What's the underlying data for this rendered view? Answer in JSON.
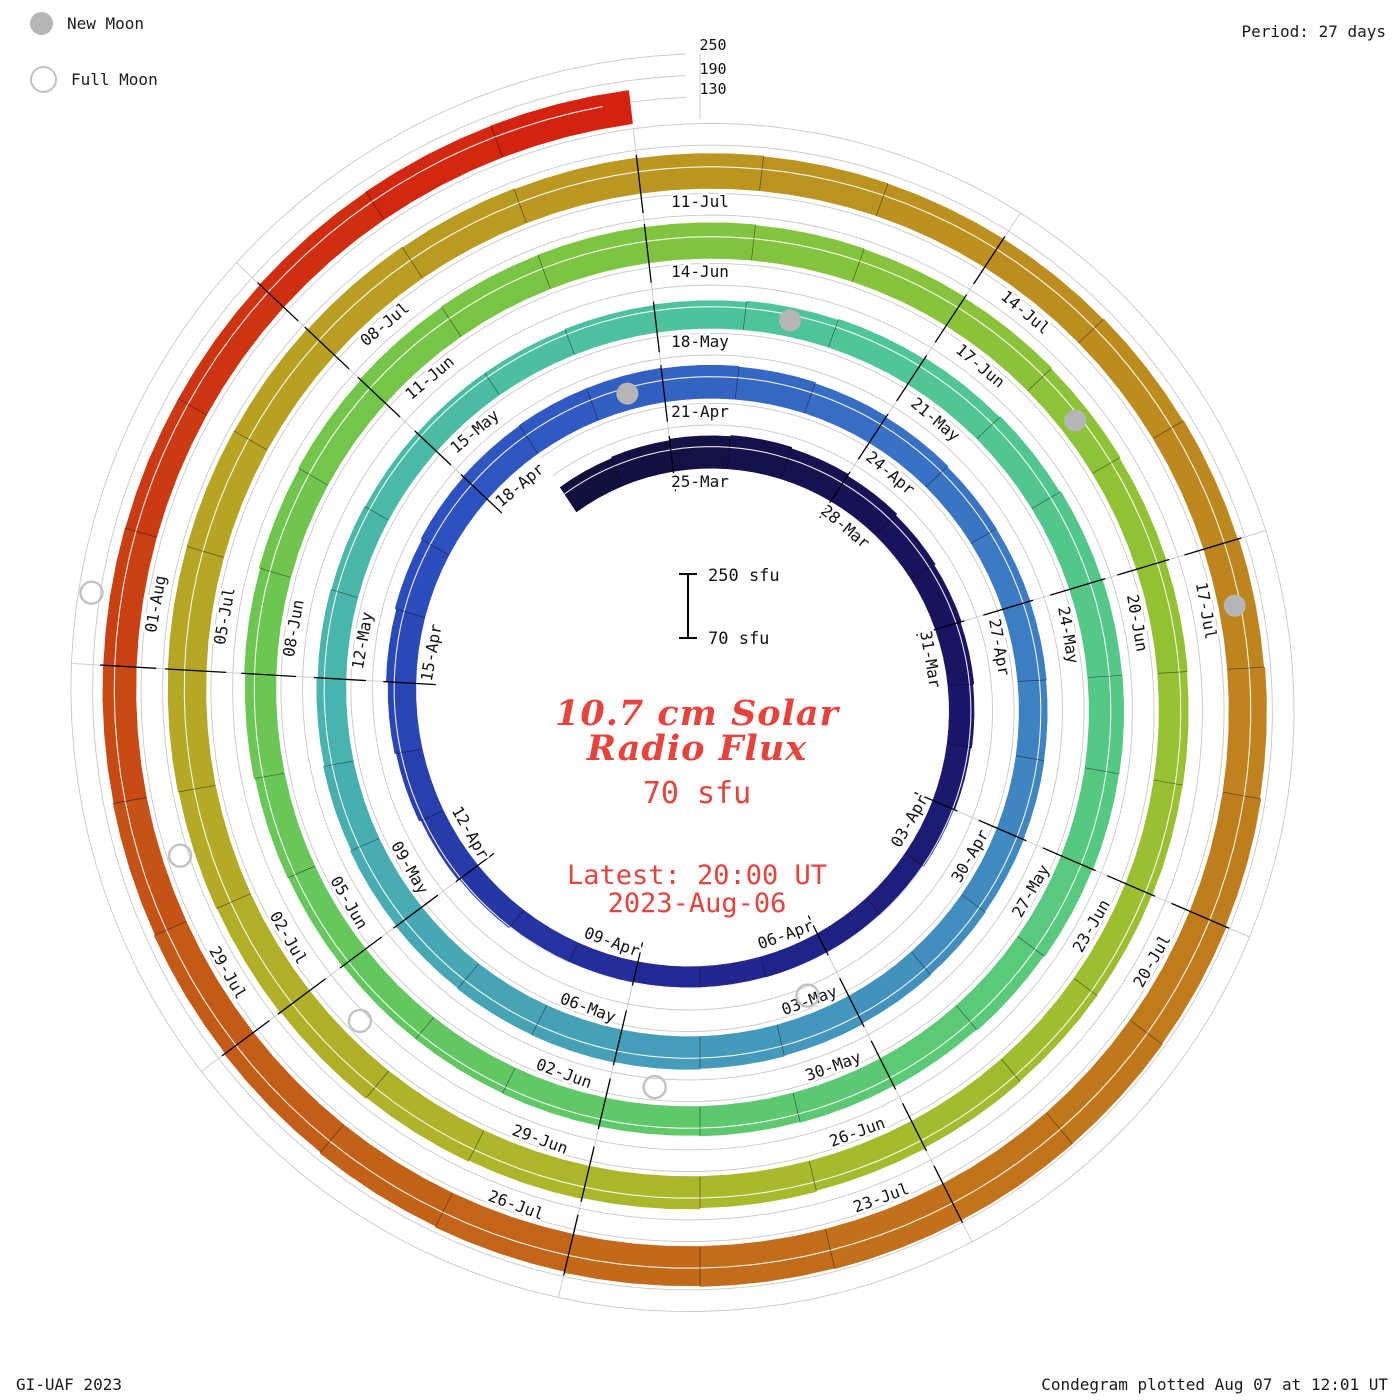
{
  "meta": {
    "credit": "GI-UAF 2023",
    "plotted": "Condegram plotted Aug 07 at 12:01 UT",
    "period_label": "Period: 27 days"
  },
  "legend": {
    "new_moon": "New Moon",
    "full_moon": "Full Moon"
  },
  "center": {
    "title_line1": "10.7 cm Solar",
    "title_line2": "Radio Flux",
    "baseline_label": "70 sfu",
    "latest_line1": "Latest: 20:00 UT",
    "latest_line2": "2023-Aug-06",
    "scale_top_label": "250 sfu",
    "scale_bottom_label": "70 sfu"
  },
  "scale_axis_labels": [
    "250",
    "190",
    "130"
  ],
  "chart_data": {
    "type": "bar",
    "layout": "condegram-spiral",
    "title": "10.7 cm Solar Radio Flux",
    "period_days": 27,
    "start_date": "2023-03-23",
    "end_date": "2023-08-06",
    "flux_unit": "sfu",
    "flux_min": 70,
    "flux_max": 250,
    "gridlines_sfu": [
      130,
      190,
      250
    ],
    "label_step_days": 3,
    "date_labels": [
      "25-Mar",
      "28-Mar",
      "31-Mar",
      "03-Apr",
      "06-Apr",
      "09-Apr",
      "12-Apr",
      "15-Apr",
      "18-Apr",
      "21-Apr",
      "24-Apr",
      "27-Apr",
      "30-Apr",
      "03-May",
      "06-May",
      "09-May",
      "12-May",
      "15-May",
      "18-May",
      "21-May",
      "24-May",
      "27-May",
      "30-May",
      "02-Jun",
      "05-Jun",
      "08-Jun",
      "11-Jun",
      "14-Jun",
      "17-Jun",
      "20-Jun",
      "23-Jun",
      "26-Jun",
      "29-Jun",
      "02-Jul",
      "05-Jul",
      "08-Jul",
      "11-Jul",
      "14-Jul",
      "17-Jul",
      "20-Jul",
      "23-Jul",
      "26-Jul",
      "29-Jul",
      "01-Aug"
    ],
    "daily_flux": [
      152,
      156,
      160,
      163,
      159,
      154,
      149,
      145,
      142,
      139,
      136,
      133,
      131,
      129,
      128,
      127,
      127,
      129,
      131,
      134,
      138,
      143,
      147,
      152,
      156,
      160,
      162,
      164,
      164,
      162,
      160,
      157,
      154,
      151,
      150,
      149,
      148,
      149,
      150,
      152,
      154,
      157,
      159,
      161,
      162,
      161,
      159,
      157,
      154,
      151,
      148,
      146,
      144,
      143,
      143,
      145,
      147,
      150,
      153,
      157,
      160,
      163,
      165,
      166,
      165,
      163,
      160,
      157,
      154,
      152,
      150,
      149,
      148,
      148,
      150,
      152,
      155,
      158,
      161,
      164,
      167,
      169,
      170,
      169,
      167,
      165,
      162,
      159,
      156,
      153,
      151,
      150,
      149,
      150,
      152,
      154,
      157,
      160,
      163,
      166,
      169,
      171,
      173,
      175,
      176,
      176,
      175,
      173,
      171,
      169,
      167,
      165,
      164,
      164,
      166,
      168,
      171,
      174,
      177,
      180,
      182,
      183,
      183,
      181,
      179,
      176,
      173,
      170,
      167,
      164,
      162,
      161,
      160,
      160,
      161,
      162,
      163
    ],
    "new_moons": [
      {
        "date": "2023-04-20",
        "day_index": 28
      },
      {
        "date": "2023-05-19",
        "day_index": 57
      },
      {
        "date": "2023-06-18",
        "day_index": 87
      },
      {
        "date": "2023-07-17",
        "day_index": 116
      }
    ],
    "full_moons": [
      {
        "date": "2023-04-06",
        "day_index": 14
      },
      {
        "date": "2023-05-05",
        "day_index": 43
      },
      {
        "date": "2023-06-04",
        "day_index": 73
      },
      {
        "date": "2023-07-03",
        "day_index": 102
      },
      {
        "date": "2023-08-01",
        "day_index": 131
      }
    ],
    "colormap": [
      [
        0.0,
        "#12103d"
      ],
      [
        0.06,
        "#1a1464"
      ],
      [
        0.12,
        "#232a96"
      ],
      [
        0.18,
        "#2c4fc0"
      ],
      [
        0.24,
        "#3a74c4"
      ],
      [
        0.3,
        "#4495bd"
      ],
      [
        0.36,
        "#49b3ae"
      ],
      [
        0.42,
        "#4fc49a"
      ],
      [
        0.48,
        "#58c97d"
      ],
      [
        0.54,
        "#64c75e"
      ],
      [
        0.6,
        "#7cc443"
      ],
      [
        0.66,
        "#97c133"
      ],
      [
        0.72,
        "#adb62a"
      ],
      [
        0.78,
        "#b8a023"
      ],
      [
        0.84,
        "#bd8b1f"
      ],
      [
        0.89,
        "#c1741c"
      ],
      [
        0.94,
        "#c35b18"
      ],
      [
        0.97,
        "#cb3a12"
      ],
      [
        1.0,
        "#d42210"
      ]
    ],
    "accent_red": "#e8423c",
    "moon_gray": "#b5b5b5",
    "grid_gray": "#c8c8c8"
  }
}
